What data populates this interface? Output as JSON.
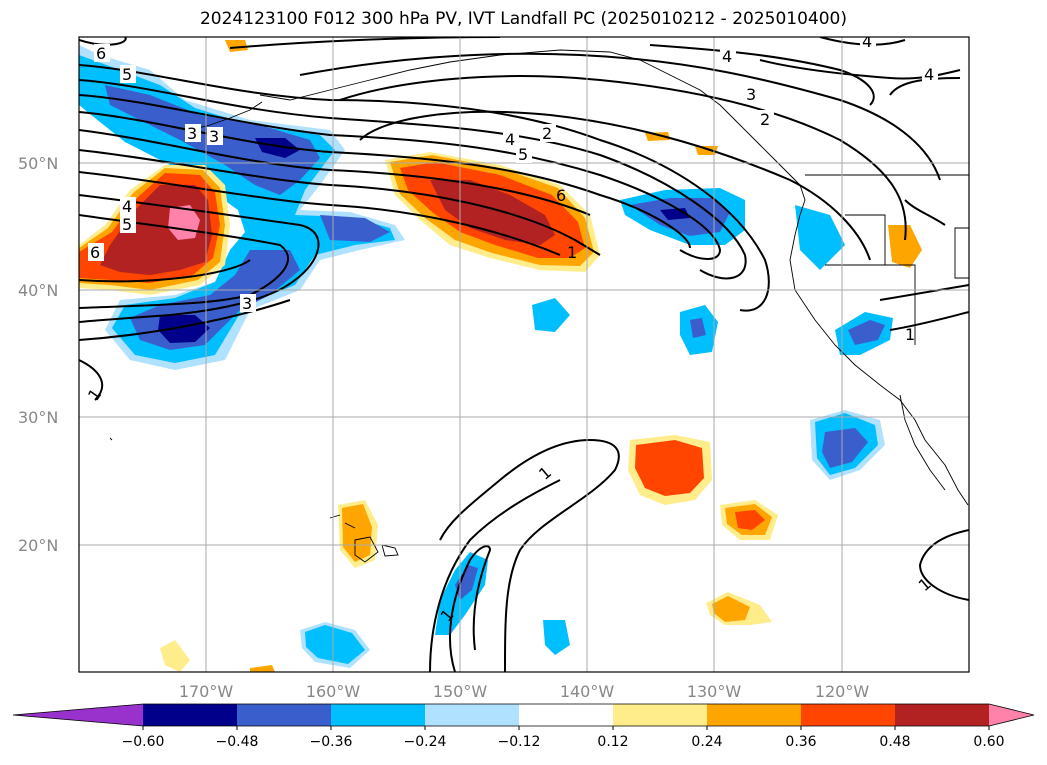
{
  "title": "2024123100 F012 300 hPa PV, IVT Landfall PC (2025010212 - 2025010400)",
  "lat_labels": [
    "50°N",
    "40°N",
    "30°N",
    "20°N"
  ],
  "lon_labels": [
    "170°W",
    "160°W",
    "150°W",
    "140°W",
    "130°W",
    "120°W"
  ],
  "contour_labels": [
    "6",
    "5",
    "4",
    "3",
    "3",
    "5",
    "6",
    "3",
    "1",
    "2",
    "4",
    "5",
    "6",
    "1",
    "4",
    "3",
    "2",
    "4",
    "4",
    "1",
    "1",
    "1",
    "1"
  ],
  "colorbar": {
    "ticks": [
      "−0.60",
      "−0.48",
      "−0.36",
      "−0.24",
      "−0.12",
      "0.12",
      "0.24",
      "0.36",
      "0.48",
      "0.60"
    ],
    "colors": [
      "#9932cc",
      "#00008b",
      "#3a5fcd",
      "#00bfff",
      "#b0e2ff",
      "#ffffff",
      "#ffec8b",
      "#ffa500",
      "#ff4500",
      "#b22222",
      "#ff82ab"
    ]
  },
  "fill_colors": {
    "neg1": "#b0e2ff",
    "neg2": "#00bfff",
    "neg3": "#3a5fcd",
    "neg4": "#00008b",
    "pos1": "#ffec8b",
    "pos2": "#ffa500",
    "pos3": "#ff4500",
    "pos4": "#b22222",
    "pos5": "#ff82ab"
  }
}
